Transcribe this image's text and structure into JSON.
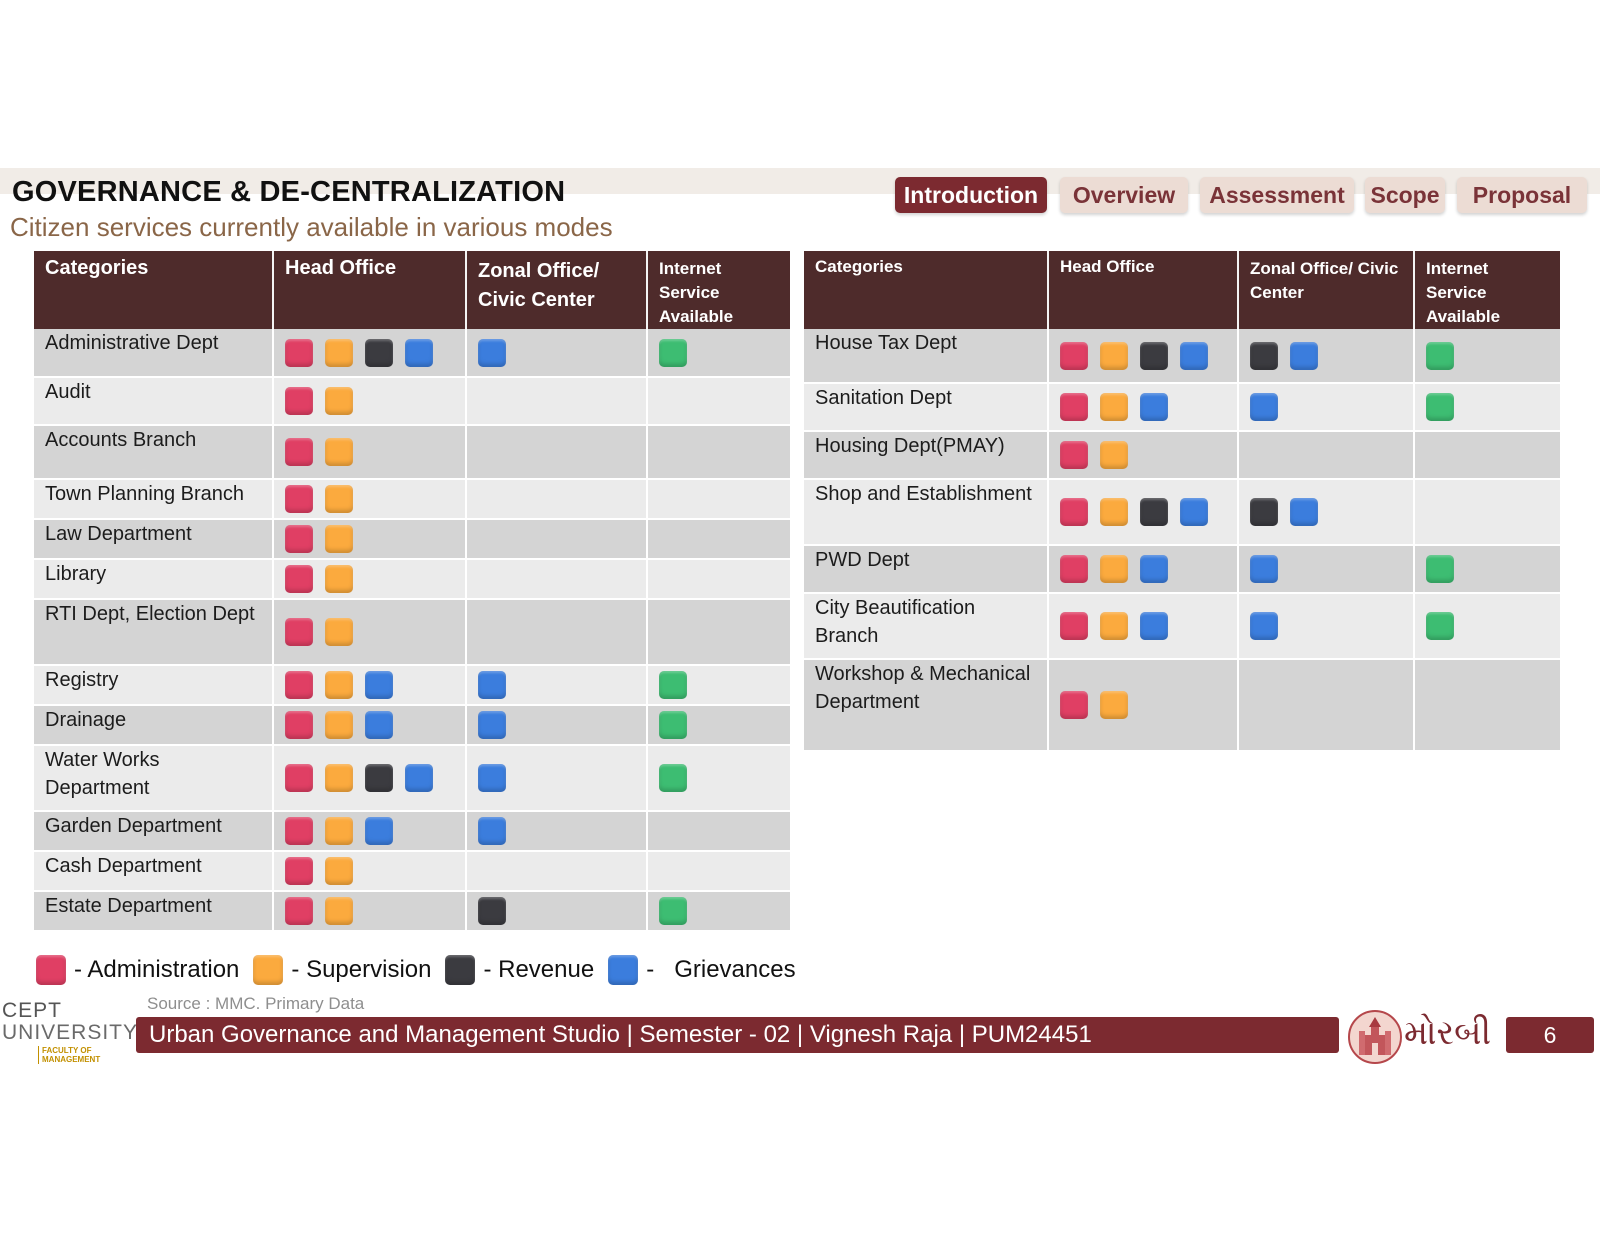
{
  "header": {
    "title": "GOVERNANCE & DE-CENTRALIZATION",
    "subtitle": "Citizen services currently available in various modes"
  },
  "nav": {
    "tabs": [
      "Introduction",
      "Overview",
      "Assessment",
      "Scope",
      "Proposal"
    ],
    "active": "Introduction"
  },
  "colors": {
    "admin": "#e03f64",
    "supervision": "#fbaa3e",
    "revenue": "#3b3b40",
    "grievance": "#3b7ddd",
    "internet": "#3dbd72"
  },
  "table_left": {
    "headers": [
      "Categories",
      "Head Office",
      "Zonal Office/ Civic Center",
      "Internet Service Available"
    ],
    "rows": [
      {
        "category": "Administrative Dept",
        "head": [
          "admin",
          "supervision",
          "revenue",
          "grievance"
        ],
        "zonal": [
          "grievance"
        ],
        "internet": true
      },
      {
        "category": "Audit",
        "head": [
          "admin",
          "supervision"
        ],
        "zonal": [],
        "internet": false
      },
      {
        "category": "Accounts Branch",
        "head": [
          "admin",
          "supervision"
        ],
        "zonal": [],
        "internet": false
      },
      {
        "category": "Town Planning Branch",
        "head": [
          "admin",
          "supervision"
        ],
        "zonal": [],
        "internet": false
      },
      {
        "category": "Law Department",
        "head": [
          "admin",
          "supervision"
        ],
        "zonal": [],
        "internet": false
      },
      {
        "category": "Library",
        "head": [
          "admin",
          "supervision"
        ],
        "zonal": [],
        "internet": false
      },
      {
        "category": "RTI Dept, Election Dept",
        "head": [
          "admin",
          "supervision"
        ],
        "zonal": [],
        "internet": false
      },
      {
        "category": "Registry",
        "head": [
          "admin",
          "supervision",
          "grievance"
        ],
        "zonal": [
          "grievance"
        ],
        "internet": true
      },
      {
        "category": "Drainage",
        "head": [
          "admin",
          "supervision",
          "grievance"
        ],
        "zonal": [
          "grievance"
        ],
        "internet": true
      },
      {
        "category": "Water Works Department",
        "head": [
          "admin",
          "supervision",
          "revenue",
          "grievance"
        ],
        "zonal": [
          "grievance"
        ],
        "internet": true
      },
      {
        "category": "Garden Department",
        "head": [
          "admin",
          "supervision",
          "grievance"
        ],
        "zonal": [
          "grievance"
        ],
        "internet": false
      },
      {
        "category": "Cash Department",
        "head": [
          "admin",
          "supervision"
        ],
        "zonal": [],
        "internet": false
      },
      {
        "category": "Estate Department",
        "head": [
          "admin",
          "supervision"
        ],
        "zonal": [
          "revenue"
        ],
        "internet": true
      }
    ]
  },
  "table_right": {
    "headers": [
      "Categories",
      "Head Office",
      "Zonal Office/ Civic Center",
      "Internet Service Available"
    ],
    "rows": [
      {
        "category": "House Tax Dept",
        "head": [
          "admin",
          "supervision",
          "revenue",
          "grievance"
        ],
        "zonal": [
          "revenue",
          "grievance"
        ],
        "internet": true
      },
      {
        "category": "Sanitation Dept",
        "head": [
          "admin",
          "supervision",
          "grievance"
        ],
        "zonal": [
          "grievance"
        ],
        "internet": true
      },
      {
        "category": "Housing Dept(PMAY)",
        "head": [
          "admin",
          "supervision"
        ],
        "zonal": [],
        "internet": false
      },
      {
        "category": "Shop and Establishment",
        "head": [
          "admin",
          "supervision",
          "revenue",
          "grievance"
        ],
        "zonal": [
          "revenue",
          "grievance"
        ],
        "internet": false
      },
      {
        "category": "PWD Dept",
        "head": [
          "admin",
          "supervision",
          "grievance"
        ],
        "zonal": [
          "grievance"
        ],
        "internet": true
      },
      {
        "category": "City Beautification Branch",
        "head": [
          "admin",
          "supervision",
          "grievance"
        ],
        "zonal": [
          "grievance"
        ],
        "internet": true
      },
      {
        "category": "Workshop & Mechanical Department",
        "head": [
          "admin",
          "supervision"
        ],
        "zonal": [],
        "internet": false
      }
    ]
  },
  "legend": [
    {
      "key": "admin",
      "label": "- Administration"
    },
    {
      "key": "supervision",
      "label": "- Supervision"
    },
    {
      "key": "revenue",
      "label": "- Revenue"
    },
    {
      "key": "grievance",
      "label": "-   Grievances"
    }
  ],
  "source": "Source : MMC. Primary Data",
  "footer": {
    "text": "Urban Governance and Management Studio | Semester - 02 | Vignesh Raja | PUM24451",
    "page": "6",
    "city": "મોરબી",
    "logo_line1": "CEPT",
    "logo_line2": "UNIVERSITY",
    "logo_line3": "FACULTY OF MANAGEMENT"
  }
}
